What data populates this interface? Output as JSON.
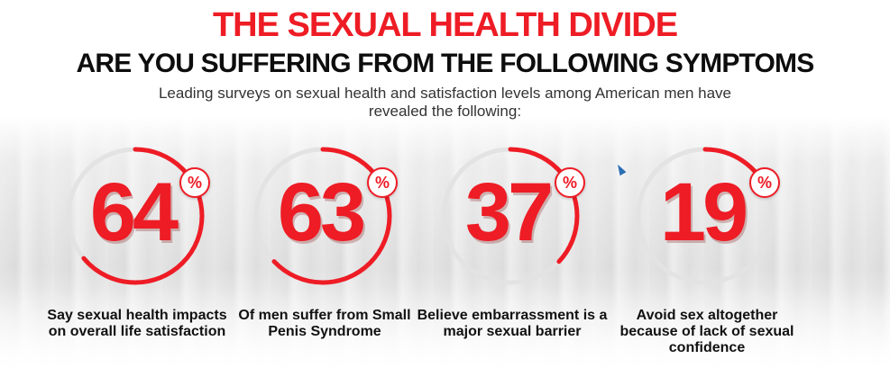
{
  "header": {
    "title": "THE SEXUAL HEALTH DIVIDE",
    "subtitle": "ARE YOU SUFFERING FROM THE FOLLOWING SYMPTOMS",
    "intro": "Leading surveys on sexual health and satisfaction levels among American men have revealed the following:"
  },
  "accent_color": "#ee1c25",
  "stats": [
    {
      "value": "64",
      "unit": "%",
      "caption": "Say sexual health impacts on overall life satisfaction",
      "percent": 64
    },
    {
      "value": "63",
      "unit": "%",
      "caption": "Of men suffer from Small Penis Syndrome",
      "percent": 63
    },
    {
      "value": "37",
      "unit": "%",
      "caption": "Believe embarrassment is a major sexual barrier",
      "percent": 37
    },
    {
      "value": "19",
      "unit": "%",
      "caption": "Avoid sex altogether because of lack of sexual confidence",
      "percent": 19
    }
  ]
}
